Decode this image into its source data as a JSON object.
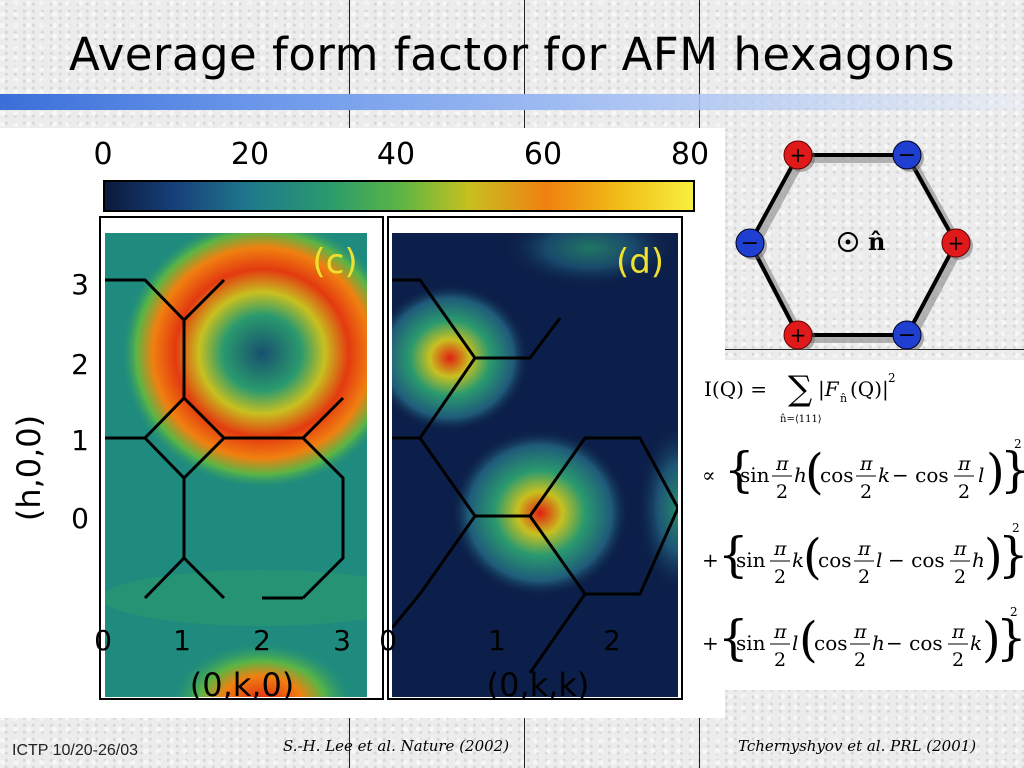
{
  "title": "Average form factor for AFM hexagons",
  "footer": {
    "left": "ICTP 10/20-26/03",
    "ref1": "S.-H. Lee et al. Nature (2002)",
    "ref2": "Tchernyshyov et al. PRL (2001)"
  },
  "colorbar": {
    "ticks": [
      "0",
      "20",
      "40",
      "60",
      "80"
    ],
    "colors": [
      "#0a1a3a",
      "#17407a",
      "#1f7a8c",
      "#2a9a6e",
      "#5ab545",
      "#c8c020",
      "#f08010",
      "#f0c018",
      "#f8f040"
    ]
  },
  "panel_c": {
    "label": "(c)",
    "y_ticks": [
      "3",
      "2",
      "1",
      "0"
    ],
    "x_ticks": [
      "0",
      "1",
      "2",
      "3"
    ],
    "ylabel": "(h,0,0)",
    "xlabel": "(0,k,0)"
  },
  "panel_d": {
    "label": "(d)",
    "x_ticks": [
      "0",
      "1",
      "2"
    ],
    "xlabel": "(0,k,k)"
  },
  "hexagon": {
    "spins": [
      "+",
      "−",
      "+",
      "−",
      "+",
      "−"
    ],
    "normal_label": "n̂",
    "colors": {
      "plus": "#e01a1a",
      "minus": "#1f3fd0"
    }
  },
  "formula": {
    "lhs": "I(Q) =",
    "sum_sub": "n̂=⟨111⟩",
    "sum_term": "|F",
    "sum_term_sub": "n̂",
    "sum_term_end": "(Q)|",
    "power": "2",
    "line1_op": "∝",
    "line1": [
      "sin",
      "π",
      "2",
      "h",
      "cos",
      "π",
      "2",
      "k",
      "− cos",
      "π",
      "2",
      "l"
    ],
    "line2_op": "+",
    "line2": [
      "sin",
      "π",
      "2",
      "k",
      "cos",
      "π",
      "2",
      "l",
      "− cos",
      "π",
      "2",
      "h"
    ],
    "line3_op": "+",
    "line3": [
      "sin",
      "π",
      "2",
      "l",
      "cos",
      "π",
      "2",
      "h",
      "− cos",
      "π",
      "2",
      "k"
    ]
  }
}
